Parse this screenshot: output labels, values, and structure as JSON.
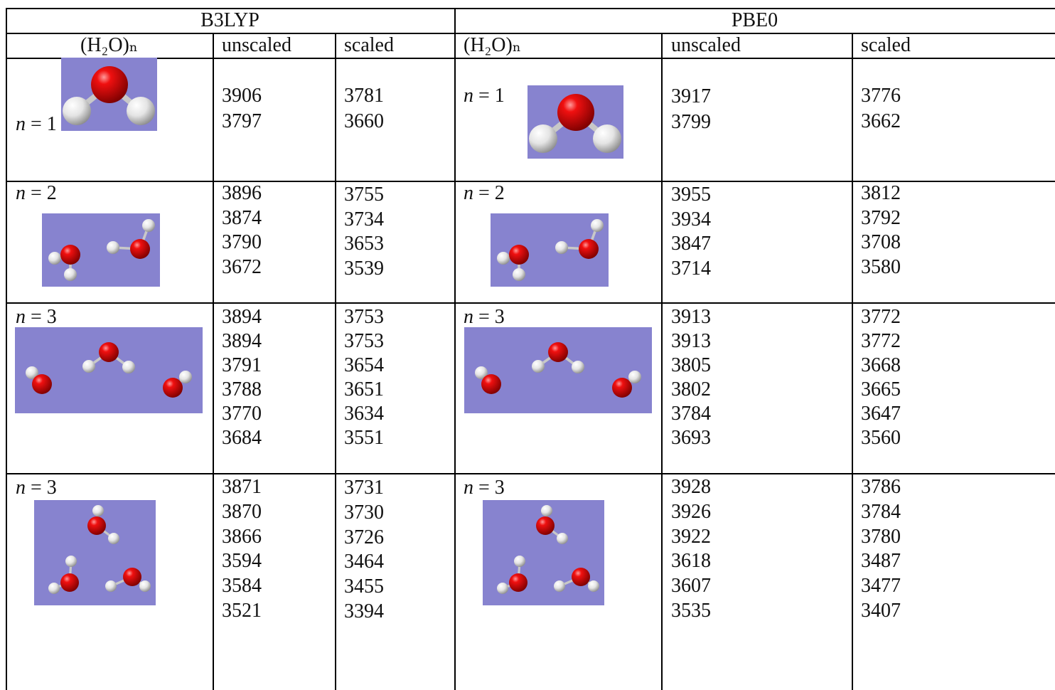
{
  "table": {
    "groups": [
      "B3LYP",
      "PBE0"
    ],
    "columns": [
      "(H₂O)ₙ",
      "unscaled",
      "scaled",
      "(H₂O)ₙ",
      "unscaled",
      "scaled"
    ],
    "rows": [
      {
        "b3lyp": {
          "label": "n = 1",
          "unscaled": [
            3906,
            3797
          ],
          "scaled": [
            3781,
            3660
          ]
        },
        "pbe0": {
          "label": "n = 1",
          "unscaled": [
            3917,
            3799
          ],
          "scaled": [
            3776,
            3662
          ]
        }
      },
      {
        "b3lyp": {
          "label": "n = 2",
          "unscaled": [
            3896,
            3874,
            3790,
            3672
          ],
          "scaled": [
            3755,
            3734,
            3653,
            3539
          ]
        },
        "pbe0": {
          "label": "n = 2",
          "unscaled": [
            3955,
            3934,
            3847,
            3714
          ],
          "scaled": [
            3812,
            3792,
            3708,
            3580
          ]
        }
      },
      {
        "b3lyp": {
          "label": "n = 3",
          "unscaled": [
            3894,
            3894,
            3791,
            3788,
            3770,
            3684
          ],
          "scaled": [
            3753,
            3753,
            3654,
            3651,
            3634,
            3551
          ]
        },
        "pbe0": {
          "label": "n = 3",
          "unscaled": [
            3913,
            3913,
            3805,
            3802,
            3784,
            3693
          ],
          "scaled": [
            3772,
            3772,
            3668,
            3665,
            3647,
            3560
          ]
        }
      },
      {
        "b3lyp": {
          "label": "n = 3",
          "unscaled": [
            3871,
            3870,
            3866,
            3594,
            3584,
            3521
          ],
          "scaled": [
            3731,
            3730,
            3726,
            3464,
            3455,
            3394
          ]
        },
        "pbe0": {
          "label": "n = 3",
          "unscaled": [
            3928,
            3926,
            3922,
            3618,
            3607,
            3535
          ],
          "scaled": [
            3786,
            3784,
            3780,
            3487,
            3477,
            3407
          ]
        }
      }
    ]
  }
}
